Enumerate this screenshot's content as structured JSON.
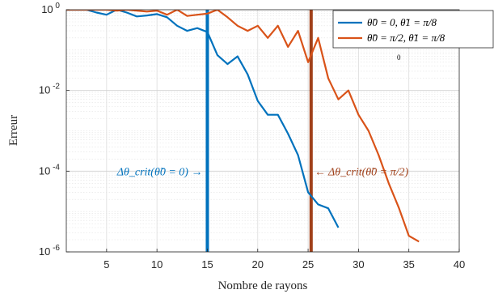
{
  "chart_data": {
    "type": "line",
    "xlabel": "Nombre de rayons",
    "ylabel": "Erreur",
    "yscale": "log",
    "xlim": [
      1,
      40
    ],
    "ylim": [
      1e-06,
      1
    ],
    "xticks": [
      5,
      10,
      15,
      20,
      25,
      30,
      35,
      40
    ],
    "xtick_labels": [
      "5",
      "10",
      "15",
      "20",
      "25",
      "30",
      "35",
      "40"
    ],
    "yticks": [
      1,
      0.01,
      0.0001,
      1e-06
    ],
    "ytick_labels": [
      {
        "base": "10",
        "exp": "0"
      },
      {
        "base": "10",
        "exp": "-2"
      },
      {
        "base": "10",
        "exp": "-4"
      },
      {
        "base": "10",
        "exp": "-6"
      }
    ],
    "grid": true,
    "legend_position": "top-right",
    "series": [
      {
        "name": "θ̃0 = 0, θ̃1 = π/8",
        "color": "#0072BD",
        "x": [
          1,
          2,
          3,
          4,
          5,
          6,
          7,
          8,
          9,
          10,
          11,
          12,
          13,
          14,
          15,
          16,
          17,
          18,
          19,
          20,
          21,
          22,
          23,
          24,
          25,
          26,
          27,
          28
        ],
        "y": [
          1.0,
          1.0,
          1.0,
          0.85,
          0.75,
          1.0,
          0.85,
          0.68,
          0.72,
          0.78,
          0.65,
          0.4,
          0.3,
          0.35,
          0.28,
          0.075,
          0.045,
          0.07,
          0.025,
          0.0055,
          0.0025,
          0.0025,
          0.00085,
          0.00025,
          3e-05,
          1.5e-05,
          1.2e-05,
          4e-06
        ]
      },
      {
        "name": "θ̃0 = π/2, θ̃1 = π/8",
        "color": "#D95319",
        "x": [
          1,
          2,
          3,
          4,
          5,
          6,
          7,
          8,
          9,
          10,
          11,
          12,
          13,
          14,
          15,
          16,
          17,
          18,
          19,
          20,
          21,
          22,
          23,
          24,
          25,
          26,
          27,
          28,
          29,
          30,
          31,
          32,
          33,
          34,
          35,
          36
        ],
        "y": [
          1.0,
          1.0,
          1.0,
          1.0,
          1.0,
          0.95,
          1.0,
          0.95,
          0.9,
          0.95,
          0.75,
          1.0,
          0.7,
          0.75,
          0.8,
          1.0,
          0.65,
          0.4,
          0.3,
          0.4,
          0.2,
          0.4,
          0.12,
          0.3,
          0.05,
          0.2,
          0.02,
          0.006,
          0.01,
          0.0025,
          0.001,
          0.00025,
          5e-05,
          1.25e-05,
          2.5e-06,
          1.8e-06
        ]
      }
    ],
    "annotations": [
      {
        "text": "Δθ_crit(θ̃0 = 0) →",
        "x": 15,
        "color": "#0072BD"
      },
      {
        "text": "← Δθ_crit(θ̃0 = π/2)",
        "x": 25.3,
        "color": "#A0401A"
      }
    ],
    "vertical_lines": [
      {
        "x": 15,
        "color": "#0072BD"
      },
      {
        "x": 25.3,
        "color": "#A0401A"
      }
    ],
    "stray_label": "0"
  }
}
